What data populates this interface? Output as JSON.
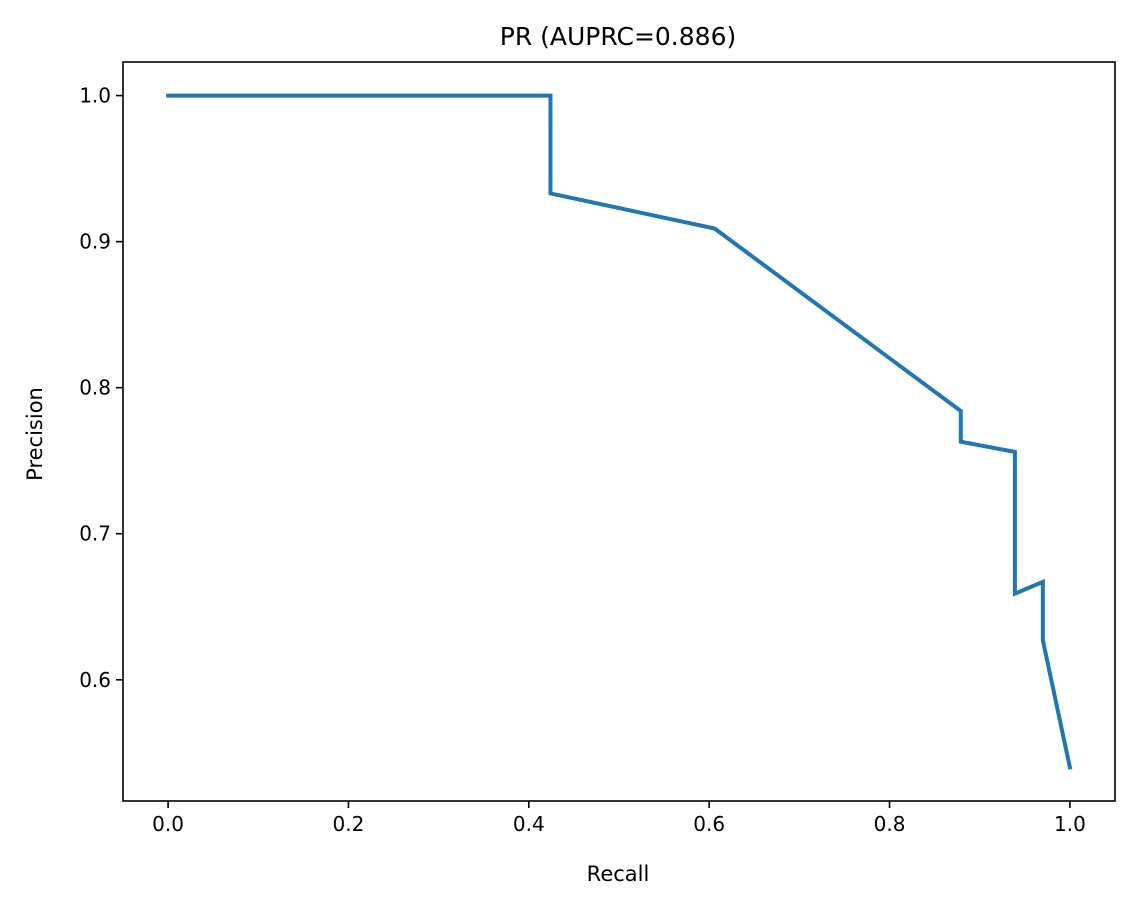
{
  "chart_data": {
    "type": "line",
    "title": "PR (AUPRC=0.886)",
    "xlabel": "Recall",
    "ylabel": "Precision",
    "xlim": [
      -0.05,
      1.05
    ],
    "ylim": [
      0.517,
      1.023
    ],
    "xticks": [
      0.0,
      0.2,
      0.4,
      0.6,
      0.8,
      1.0
    ],
    "xtick_labels": [
      "0.0",
      "0.2",
      "0.4",
      "0.6",
      "0.8",
      "1.0"
    ],
    "yticks": [
      0.6,
      0.7,
      0.8,
      0.9,
      1.0
    ],
    "ytick_labels": [
      "0.6",
      "0.7",
      "0.8",
      "0.9",
      "1.0"
    ],
    "grid": false,
    "series": [
      {
        "name": "PR",
        "color": "#1f77b4",
        "x": [
          0.0,
          0.424,
          0.424,
          0.606,
          0.879,
          0.879,
          0.939,
          0.939,
          0.97,
          0.97,
          1.0
        ],
        "y": [
          1.0,
          1.0,
          0.933,
          0.909,
          0.784,
          0.763,
          0.756,
          0.659,
          0.667,
          0.627,
          0.54
        ]
      }
    ]
  }
}
